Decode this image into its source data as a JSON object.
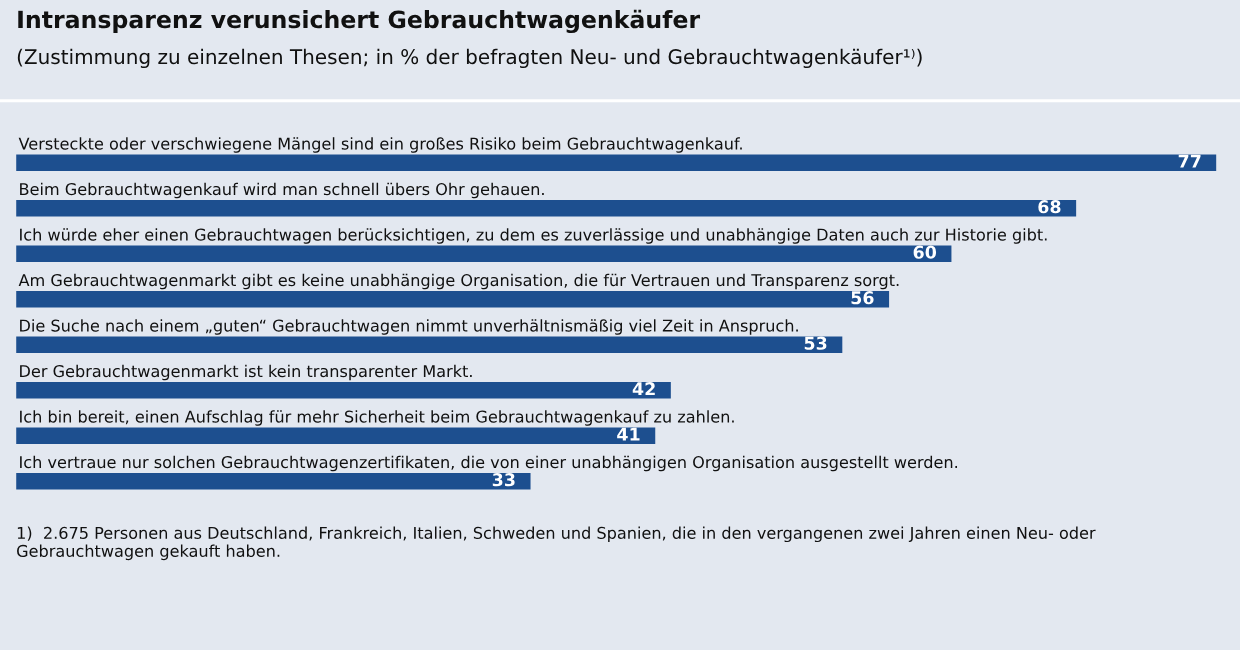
{
  "chart_data": {
    "type": "bar",
    "orientation": "horizontal",
    "title": "Intransparenz verunsichert Gebrauchtwagenkäufer",
    "subtitle": "(Zustimmung zu einzelnen Thesen; in % der befragten Neu- und Gebrauchtwagenkäufer¹⁾)",
    "categories": [
      "Versteckte oder verschwiegene Mängel sind ein großes Risiko beim Gebrauchtwagenkauf.",
      "Beim Gebrauchtwagenkauf wird man schnell übers Ohr gehauen.",
      "Ich würde eher einen Gebrauchtwagen berücksichtigen, zu dem es zuverlässige und unabhängige Daten auch zur Historie gibt.",
      "Am Gebrauchtwagenmarkt gibt es keine unabhängige Organisation, die für Vertrauen und Transparenz sorgt.",
      "Die Suche nach einem „guten“ Gebrauchtwagen nimmt unverhältnismäßig viel Zeit in Anspruch.",
      "Der Gebrauchtwagenmarkt ist kein transparenter Markt.",
      "Ich bin bereit, einen Aufschlag für mehr Sicherheit beim Gebrauchtwagenkauf zu zahlen.",
      "Ich vertraue nur solchen Gebrauchtwagenzertifikaten, die von einer unabhängigen Organisation ausgestellt werden."
    ],
    "values": [
      77,
      68,
      60,
      56,
      53,
      42,
      41,
      33
    ],
    "color": "#1d4f8f",
    "data_labels": true,
    "tick_labels": false,
    "annotations": [
      "1)  2.675 Personen aus Deutschland, Frankreich, Italien, Schweden und Spanien, die in den vergangenen zwei Jahren einen Neu- oder Gebrauchtwagen gekauft haben."
    ]
  }
}
